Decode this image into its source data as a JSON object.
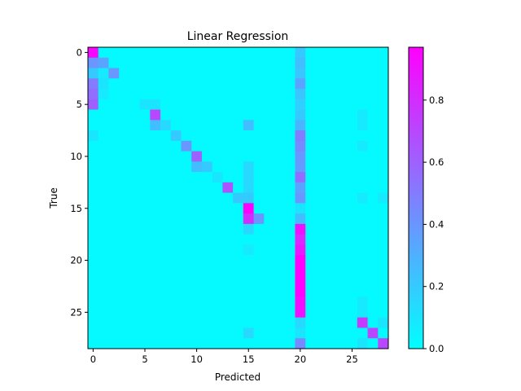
{
  "chart_data": {
    "type": "heatmap",
    "title": "Linear Regression",
    "xlabel": "Predicted",
    "ylabel": "True",
    "n_classes": 29,
    "xticks": [
      0,
      5,
      10,
      15,
      20,
      25
    ],
    "yticks": [
      0,
      5,
      10,
      15,
      20,
      25
    ],
    "colormap": "cool",
    "colormap_endpoints": [
      "#00ffff",
      "#ff00ff"
    ],
    "colorbar": {
      "range": [
        0.0,
        0.97
      ],
      "ticks": [
        0.0,
        0.2,
        0.4,
        0.6,
        0.8
      ],
      "tick_labels": [
        "0.0",
        "0.2",
        "0.4",
        "0.6",
        "0.8"
      ]
    },
    "background_value": 0.02,
    "cells": [
      [
        0,
        0,
        0.95
      ],
      [
        0,
        20,
        0.2
      ],
      [
        1,
        0,
        0.4
      ],
      [
        1,
        1,
        0.35
      ],
      [
        1,
        20,
        0.25
      ],
      [
        2,
        0,
        0.2
      ],
      [
        2,
        1,
        0.08
      ],
      [
        2,
        2,
        0.4
      ],
      [
        2,
        20,
        0.22
      ],
      [
        3,
        0,
        0.5
      ],
      [
        3,
        1,
        0.1
      ],
      [
        3,
        20,
        0.35
      ],
      [
        4,
        0,
        0.55
      ],
      [
        4,
        1,
        0.08
      ],
      [
        4,
        20,
        0.22
      ],
      [
        5,
        0,
        0.6
      ],
      [
        5,
        5,
        0.1
      ],
      [
        5,
        6,
        0.1
      ],
      [
        5,
        20,
        0.18
      ],
      [
        6,
        6,
        0.7
      ],
      [
        6,
        20,
        0.2
      ],
      [
        6,
        26,
        0.08
      ],
      [
        7,
        6,
        0.25
      ],
      [
        7,
        7,
        0.15
      ],
      [
        7,
        15,
        0.25
      ],
      [
        7,
        20,
        0.28
      ],
      [
        7,
        26,
        0.08
      ],
      [
        8,
        0,
        0.1
      ],
      [
        8,
        8,
        0.2
      ],
      [
        8,
        20,
        0.5
      ],
      [
        9,
        9,
        0.4
      ],
      [
        9,
        20,
        0.45
      ],
      [
        9,
        26,
        0.08
      ],
      [
        10,
        10,
        0.6
      ],
      [
        10,
        20,
        0.4
      ],
      [
        11,
        10,
        0.25
      ],
      [
        11,
        11,
        0.2
      ],
      [
        11,
        15,
        0.15
      ],
      [
        11,
        20,
        0.38
      ],
      [
        12,
        12,
        0.1
      ],
      [
        12,
        15,
        0.15
      ],
      [
        12,
        20,
        0.55
      ],
      [
        13,
        13,
        0.65
      ],
      [
        13,
        15,
        0.15
      ],
      [
        13,
        20,
        0.35
      ],
      [
        14,
        14,
        0.2
      ],
      [
        14,
        15,
        0.2
      ],
      [
        14,
        20,
        0.4
      ],
      [
        14,
        26,
        0.08
      ],
      [
        14,
        28,
        0.08
      ],
      [
        15,
        15,
        0.97
      ],
      [
        15,
        20,
        0.1
      ],
      [
        16,
        15,
        0.8
      ],
      [
        16,
        16,
        0.4
      ],
      [
        16,
        20,
        0.25
      ],
      [
        17,
        15,
        0.15
      ],
      [
        17,
        20,
        0.9
      ],
      [
        18,
        20,
        0.82
      ],
      [
        19,
        15,
        0.08
      ],
      [
        19,
        20,
        0.88
      ],
      [
        20,
        20,
        0.97
      ],
      [
        21,
        20,
        0.97
      ],
      [
        22,
        20,
        0.97
      ],
      [
        23,
        20,
        0.97
      ],
      [
        24,
        20,
        0.92
      ],
      [
        24,
        26,
        0.08
      ],
      [
        25,
        20,
        0.9
      ],
      [
        25,
        26,
        0.08
      ],
      [
        26,
        20,
        0.15
      ],
      [
        26,
        26,
        0.75
      ],
      [
        26,
        28,
        0.1
      ],
      [
        27,
        15,
        0.15
      ],
      [
        27,
        20,
        0.1
      ],
      [
        27,
        27,
        0.7
      ],
      [
        28,
        20,
        0.45
      ],
      [
        28,
        26,
        0.1
      ],
      [
        28,
        28,
        0.7
      ]
    ]
  }
}
